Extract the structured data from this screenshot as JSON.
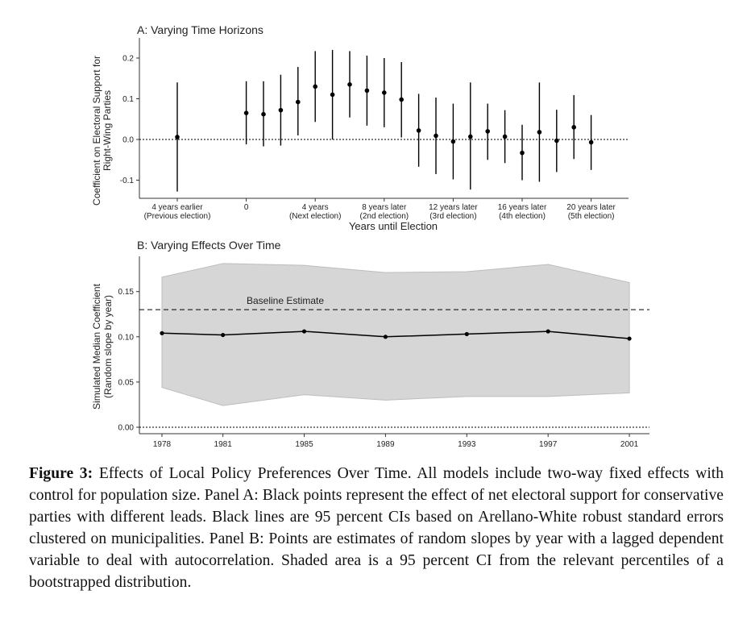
{
  "chart_data": [
    {
      "type": "scatter",
      "panel_title": "A: Varying Time Horizons",
      "xlabel": "Years until Election",
      "ylabel": "Coefficient on Electoral Support for Right-Wing Parties",
      "ylim": [
        -0.13,
        0.23
      ],
      "yticks": [
        -0.1,
        0.0,
        0.1,
        0.2
      ],
      "ytick_labels": [
        "-0.1",
        "0.0",
        "0.1",
        "0.2"
      ],
      "xtick_labels": [
        {
          "x": -4,
          "line1": "4 years earlier",
          "line2": "(Previous election)"
        },
        {
          "x": 0,
          "line1": "0",
          "line2": ""
        },
        {
          "x": 4,
          "line1": "4 years",
          "line2": "(Next election)"
        },
        {
          "x": 8,
          "line1": "8 years later",
          "line2": "(2nd election)"
        },
        {
          "x": 12,
          "line1": "12 years later",
          "line2": "(3rd election)"
        },
        {
          "x": 16,
          "line1": "16 years later",
          "line2": "(4th election)"
        },
        {
          "x": 20,
          "line1": "20 years later",
          "line2": "(5th election)"
        }
      ],
      "reference_line": 0,
      "grid": false,
      "points": [
        {
          "x": -4,
          "y": 0.006,
          "lo": -0.128,
          "hi": 0.14
        },
        {
          "x": 0,
          "y": 0.065,
          "lo": -0.012,
          "hi": 0.143
        },
        {
          "x": 1,
          "y": 0.062,
          "lo": -0.017,
          "hi": 0.143
        },
        {
          "x": 2,
          "y": 0.072,
          "lo": -0.015,
          "hi": 0.159
        },
        {
          "x": 3,
          "y": 0.092,
          "lo": 0.01,
          "hi": 0.178
        },
        {
          "x": 4,
          "y": 0.13,
          "lo": 0.043,
          "hi": 0.217
        },
        {
          "x": 5,
          "y": 0.11,
          "lo": 0.0,
          "hi": 0.22
        },
        {
          "x": 6,
          "y": 0.135,
          "lo": 0.054,
          "hi": 0.217
        },
        {
          "x": 7,
          "y": 0.12,
          "lo": 0.034,
          "hi": 0.206
        },
        {
          "x": 8,
          "y": 0.115,
          "lo": 0.03,
          "hi": 0.2
        },
        {
          "x": 9,
          "y": 0.098,
          "lo": 0.005,
          "hi": 0.19
        },
        {
          "x": 10,
          "y": 0.022,
          "lo": -0.067,
          "hi": 0.112
        },
        {
          "x": 11,
          "y": 0.009,
          "lo": -0.085,
          "hi": 0.103
        },
        {
          "x": 12,
          "y": -0.005,
          "lo": -0.098,
          "hi": 0.088
        },
        {
          "x": 13,
          "y": 0.007,
          "lo": -0.123,
          "hi": 0.14
        },
        {
          "x": 14,
          "y": 0.02,
          "lo": -0.05,
          "hi": 0.088
        },
        {
          "x": 15,
          "y": 0.007,
          "lo": -0.058,
          "hi": 0.072
        },
        {
          "x": 16,
          "y": -0.033,
          "lo": -0.1,
          "hi": 0.036
        },
        {
          "x": 17,
          "y": 0.018,
          "lo": -0.104,
          "hi": 0.14
        },
        {
          "x": 18,
          "y": -0.003,
          "lo": -0.08,
          "hi": 0.073
        },
        {
          "x": 19,
          "y": 0.03,
          "lo": -0.048,
          "hi": 0.109
        },
        {
          "x": 20,
          "y": -0.007,
          "lo": -0.075,
          "hi": 0.06
        }
      ]
    },
    {
      "type": "line",
      "panel_title": "B: Varying Effects Over Time",
      "xlabel": "",
      "ylabel": "Simulated Median Coefficient (Random slope by year)",
      "ylim": [
        -0.007,
        0.185
      ],
      "yticks": [
        0.0,
        0.05,
        0.1,
        0.15
      ],
      "ytick_labels": [
        "0.00",
        "0.05",
        "0.10",
        "0.15"
      ],
      "xticks": [
        1978,
        1981,
        1985,
        1989,
        1993,
        1997,
        2001
      ],
      "xlim": [
        1976.7,
        2002.2
      ],
      "grid": false,
      "zero_line": 0,
      "baseline": {
        "label": "Baseline Estimate",
        "value": 0.13
      },
      "series": [
        {
          "x": [
            1978,
            1981,
            1985,
            1989,
            1993,
            1997,
            2001
          ],
          "y": [
            0.104,
            0.102,
            0.106,
            0.1,
            0.103,
            0.106,
            0.098
          ],
          "lo": [
            0.044,
            0.024,
            0.036,
            0.03,
            0.034,
            0.034,
            0.038
          ],
          "hi": [
            0.166,
            0.181,
            0.179,
            0.171,
            0.172,
            0.18,
            0.16
          ]
        }
      ],
      "ribbon_color": "#d6d6d6"
    }
  ],
  "caption": {
    "label": "Figure 3:",
    "text": "Effects of Local Policy Preferences Over Time. All models include two-way fixed effects with control for population size. Panel A: Black points represent the effect of net electoral support for conservative parties with different leads. Black lines are 95 percent CIs based on Arellano-White robust standard errors clustered on municipalities. Panel B: Points are estimates of random slopes by year with a lagged dependent variable to deal with autocorrelation. Shaded area is a 95 percent CI from the relevant percentiles of a bootstrapped distribution."
  }
}
